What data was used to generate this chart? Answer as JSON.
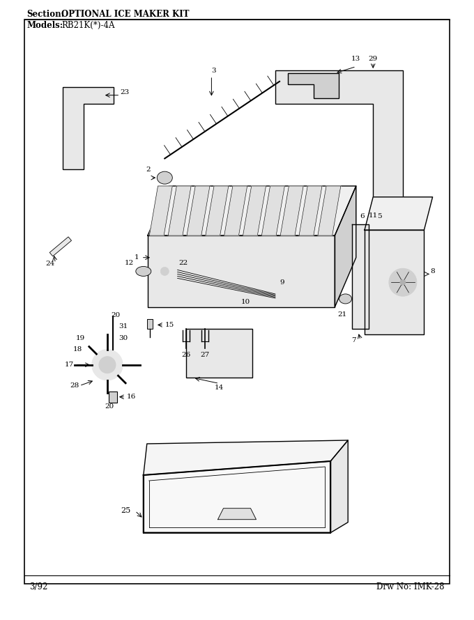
{
  "section_label": "Section:",
  "section_title": "OPTIONAL ICE MAKER KIT",
  "models_label": "Models:",
  "models_value": "RB21K(*)-4A",
  "footer_left": "3/92",
  "footer_right": "Drw No: IMK-28",
  "bg_color": "#ffffff",
  "border_color": "#000000",
  "text_color": "#000000"
}
